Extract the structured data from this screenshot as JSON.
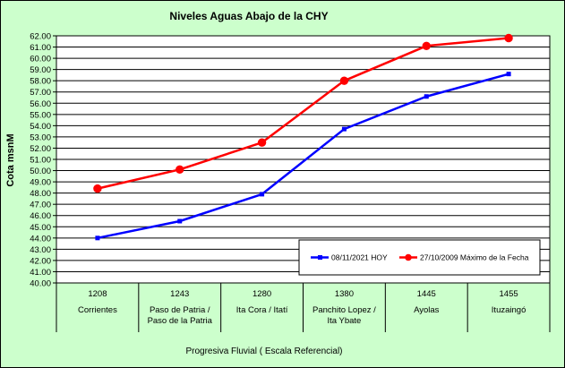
{
  "chart_data": {
    "type": "line",
    "title": "Niveles Aguas Abajo de la CHY",
    "ylabel": "Cota msnM",
    "xlabel": "Progresiva Fluvial ( Escala Referencial)",
    "ylim": [
      40.0,
      62.0
    ],
    "ytick_step": 1.0,
    "grid": true,
    "legend_position": "bottom-right",
    "categories": [
      {
        "code": "1208",
        "name": [
          "Corrientes"
        ]
      },
      {
        "code": "1243",
        "name": [
          "Paso de Patria /",
          "Paso de la Patria"
        ]
      },
      {
        "code": "1280",
        "name": [
          "Ita Cora / Itatí"
        ]
      },
      {
        "code": "1380",
        "name": [
          "Panchito Lopez /",
          "Ita Ybate"
        ]
      },
      {
        "code": "1445",
        "name": [
          "Ayolas"
        ]
      },
      {
        "code": "1455",
        "name": [
          "Ituzaingó"
        ]
      }
    ],
    "series": [
      {
        "name": "08/11/2021 HOY",
        "color": "#0000FF",
        "marker": "square",
        "values": [
          44.0,
          45.5,
          47.9,
          53.7,
          56.6,
          58.6
        ]
      },
      {
        "name": "27/10/2009 Máximo de la Fecha",
        "color": "#FF0000",
        "marker": "circle",
        "values": [
          48.4,
          50.1,
          52.5,
          58.0,
          61.1,
          61.8
        ]
      }
    ]
  },
  "colors": {
    "background": "#CCFFCC",
    "plot_area": "#FFFFFF"
  }
}
